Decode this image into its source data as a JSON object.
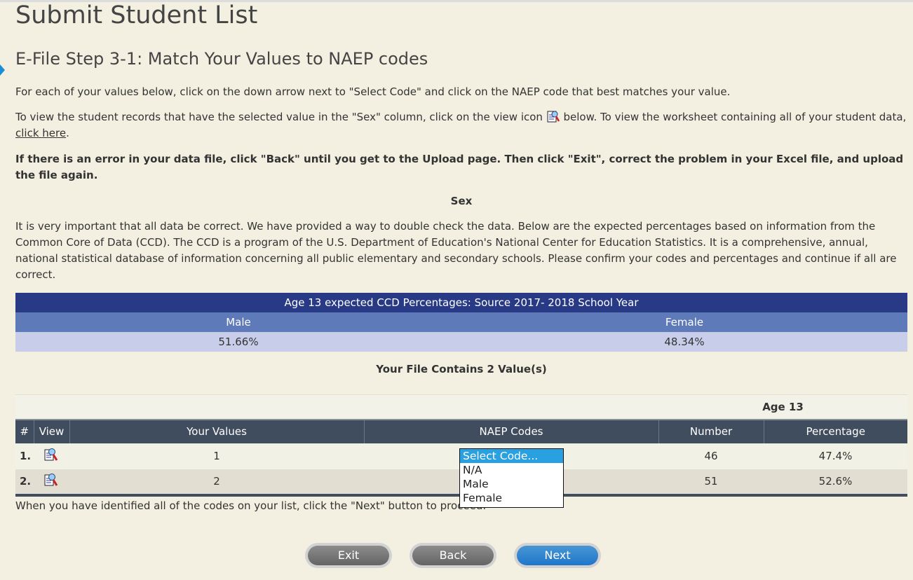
{
  "page_title": "Submit Student List",
  "step_title": "E-File Step 3-1: Match Your Values to NAEP codes",
  "instructions": {
    "p1": "For each of your values below, click on the down arrow next to \"Select Code\" and click on the NAEP code that best matches your value.",
    "p2_before": "To view the student records that have the selected value in the \"Sex\" column, click on the view icon",
    "p2_after": "below. To view the worksheet containing all of your student data,",
    "p2_link": "click here",
    "p2_end": ".",
    "warning": "If there is an error in your data file, click \"Back\" until you get to the Upload page. Then click \"Exit\", correct the problem in your Excel file, and upload the file again.",
    "section": "Sex",
    "ccd_text": "It is very important that all data be correct. We have provided a way to double check the data. Below are the expected percentages based on information from the Common Core of Data (CCD). The CCD is a program of the U.S. Department of Education's National Center for Education Statistics. It is a comprehensive, annual, national statistical database of information concerning all public elementary and secondary schools. Please confirm your codes and percentages and continue if all are correct."
  },
  "ccd_table": {
    "title": "Age 13 expected CCD Percentages: Source 2017- 2018 School Year",
    "headers": [
      "Male",
      "Female"
    ],
    "values": [
      "51.66%",
      "48.34%"
    ]
  },
  "file_contains": "Your File Contains 2 Value(s)",
  "results": {
    "group_header": "Age 13",
    "headers": [
      "#",
      "View",
      "Your Values",
      "NAEP Codes",
      "Number",
      "Percentage"
    ],
    "rows": [
      {
        "num": "1.",
        "value": "1",
        "number": "46",
        "percentage": "47.4%"
      },
      {
        "num": "2.",
        "value": "2",
        "number": "51",
        "percentage": "52.6%"
      }
    ]
  },
  "dropdown": {
    "options": [
      "Select Code...",
      "N/A",
      "Male",
      "Female"
    ],
    "selected": "Select Code..."
  },
  "footer_text": "When you have identified all of the codes on your list, click the \"Next\" button to proceed.",
  "buttons": {
    "exit": "Exit",
    "back": "Back",
    "next": "Next"
  },
  "colors": {
    "header_dark": "#283a86",
    "header_mid": "#5f7ab8",
    "row_light": "#c8cdea",
    "table_head": "#404d5f",
    "select_highlight": "#29a0df",
    "next_button": "#1f77c9"
  }
}
